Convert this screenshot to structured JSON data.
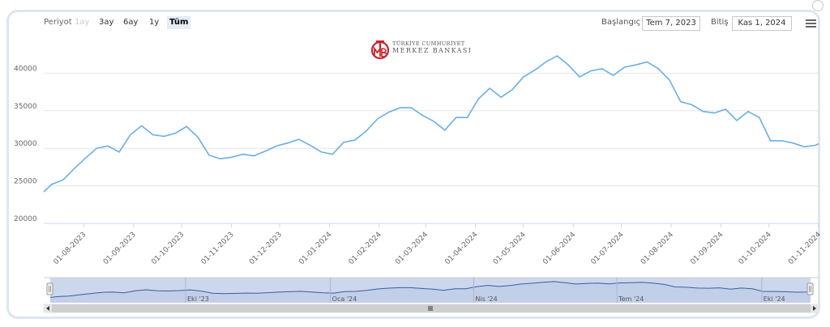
{
  "toolbar": {
    "period_label": "Periyot",
    "period_buttons": [
      "1ay",
      "3ay",
      "6ay",
      "1y",
      "Tüm"
    ],
    "start_label": "Başlangıç",
    "start_value": "Tem 7, 2023",
    "end_label": "Bitiş",
    "end_value": "Kas 1, 2024"
  },
  "logo": {
    "line1": "TÜRKİYE CUMHURİYET",
    "line2": "MERKEZ BANKASI"
  },
  "navigator": {
    "labels": [
      "Eki '23",
      "Oca '24",
      "Nis '24",
      "Tem '24",
      "Eki '24"
    ]
  },
  "colors": {
    "series": "#6aafe3",
    "navigator_fill": "#ccd7ee",
    "logo_red": "#c8262d"
  },
  "chart_data": {
    "type": "line",
    "title": "",
    "xlabel": "",
    "ylabel": "",
    "ylim": [
      20000,
      45000
    ],
    "yticks": [
      20000,
      25000,
      30000,
      35000,
      40000
    ],
    "grid": true,
    "legend": "none",
    "xtick_labels": [
      "01-08-2023",
      "01-09-2023",
      "01-10-2023",
      "01-11-2023",
      "01-12-2023",
      "01-01-2024",
      "01-02-2024",
      "01-03-2024",
      "01-04-2024",
      "01-05-2024",
      "01-06-2024",
      "01-07-2024",
      "01-08-2024",
      "01-09-2024",
      "01-10-2024",
      "01-11-2024"
    ],
    "series": [
      {
        "x": [
          "2023-07-07",
          "2023-07-12",
          "2023-07-19",
          "2023-07-26",
          "2023-08-02",
          "2023-08-09",
          "2023-08-16",
          "2023-08-23",
          "2023-08-30",
          "2023-09-06",
          "2023-09-13",
          "2023-09-20",
          "2023-09-27",
          "2023-10-04",
          "2023-10-11",
          "2023-10-18",
          "2023-10-25",
          "2023-11-01",
          "2023-11-08",
          "2023-11-15",
          "2023-11-22",
          "2023-11-29",
          "2023-12-06",
          "2023-12-13",
          "2023-12-20",
          "2023-12-27",
          "2024-01-03",
          "2024-01-10",
          "2024-01-17",
          "2024-01-24",
          "2024-01-31",
          "2024-02-07",
          "2024-02-14",
          "2024-02-21",
          "2024-02-28",
          "2024-03-06",
          "2024-03-13",
          "2024-03-20",
          "2024-03-27",
          "2024-04-03",
          "2024-04-10",
          "2024-04-17",
          "2024-04-24",
          "2024-05-01",
          "2024-05-08",
          "2024-05-15",
          "2024-05-22",
          "2024-05-29",
          "2024-06-05",
          "2024-06-12",
          "2024-06-19",
          "2024-06-26",
          "2024-07-03",
          "2024-07-10",
          "2024-07-17",
          "2024-07-24",
          "2024-07-31",
          "2024-08-07",
          "2024-08-14",
          "2024-08-21",
          "2024-08-28",
          "2024-09-04",
          "2024-09-11",
          "2024-09-18",
          "2024-09-25",
          "2024-10-02",
          "2024-10-09",
          "2024-10-16",
          "2024-10-23",
          "2024-10-30",
          "2024-11-01"
        ],
        "y": [
          24200,
          25200,
          25800,
          27300,
          28700,
          30000,
          30300,
          29500,
          31800,
          33000,
          31800,
          31600,
          32000,
          32900,
          31500,
          29100,
          28600,
          28800,
          29200,
          29000,
          29600,
          30300,
          30700,
          31200,
          30400,
          29500,
          29200,
          30800,
          31100,
          32300,
          33900,
          34800,
          35400,
          35400,
          34400,
          33600,
          32400,
          34100,
          34100,
          36600,
          38000,
          36800,
          37800,
          39500,
          40400,
          41500,
          42300,
          41100,
          39500,
          40300,
          40600,
          39700,
          40800,
          41100,
          41500,
          40600,
          39100,
          36200,
          35800,
          34900,
          34700,
          35200,
          33700,
          34900,
          34100,
          31000,
          31000,
          30700,
          30200,
          30400,
          30600
        ]
      }
    ]
  }
}
